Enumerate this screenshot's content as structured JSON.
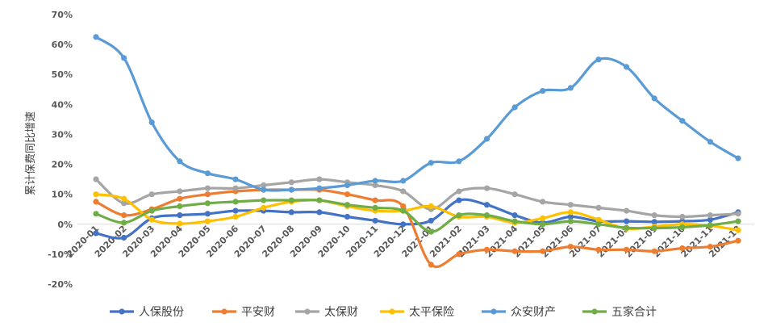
{
  "chart_data": {
    "type": "line",
    "title": "",
    "xlabel": "",
    "ylabel": "累计保费同比增速",
    "ylim": [
      -20,
      70
    ],
    "yticks": [
      -20,
      -10,
      0,
      10,
      20,
      30,
      40,
      50,
      60,
      70
    ],
    "ytick_labels": [
      "-20%",
      "-10%",
      "0%",
      "10%",
      "20%",
      "30%",
      "40%",
      "50%",
      "60%",
      "70%"
    ],
    "grid": false,
    "legend_position": "bottom",
    "categories": [
      "2020-01",
      "2020-02",
      "2020-03",
      "2020-04",
      "2020-05",
      "2020-06",
      "2020-07",
      "2020-08",
      "2020-09",
      "2020-10",
      "2020-11",
      "2020-12",
      "2021-01",
      "2021-02",
      "2021-03",
      "2021-04",
      "2021-05",
      "2021-06",
      "2021-07",
      "2021-08",
      "2021-09",
      "2021-10",
      "2021-11",
      "2021-12"
    ],
    "series": [
      {
        "name": "人保股份",
        "color": "#4472C4",
        "values": [
          -3,
          -4.5,
          2,
          3,
          3.5,
          4.5,
          4.5,
          4,
          4,
          2.5,
          1.2,
          0,
          1.2,
          8,
          6.5,
          3,
          0.5,
          2.5,
          1,
          1,
          0.8,
          1,
          1.5,
          4
        ]
      },
      {
        "name": "平安财",
        "color": "#ED7D31",
        "values": [
          7.5,
          3,
          5,
          8.5,
          10,
          11,
          11.5,
          11.5,
          11.5,
          10,
          8,
          6,
          -13.5,
          -10,
          -8.5,
          -9,
          -9,
          -7.5,
          -8.5,
          -8.5,
          -9,
          -8,
          -7.5,
          -5.5
        ]
      },
      {
        "name": "太保财",
        "color": "#A5A5A5",
        "values": [
          15,
          7,
          10,
          11,
          12,
          12,
          13,
          14,
          15,
          14,
          13,
          11,
          5,
          11,
          12,
          10,
          7.5,
          6.5,
          5.5,
          4.5,
          3,
          2.5,
          3,
          3.5
        ]
      },
      {
        "name": "太平保险",
        "color": "#FFC000",
        "values": [
          10,
          8.5,
          1.5,
          0.2,
          1,
          2.5,
          5.5,
          7.5,
          8,
          6,
          4.5,
          4.5,
          6,
          2.5,
          2.5,
          0.5,
          2,
          4,
          1.5,
          -1.5,
          -0.8,
          0,
          -0.5,
          -2
        ]
      },
      {
        "name": "众安财产",
        "color": "#5B9BD5",
        "values": [
          62.5,
          55.5,
          34,
          21,
          17,
          15,
          11.5,
          11.5,
          12,
          13,
          14.5,
          14.5,
          20.5,
          21,
          28.5,
          39,
          44.5,
          45.5,
          55,
          52.5,
          42,
          34.5,
          27.5,
          22
        ]
      },
      {
        "name": "五家合计",
        "color": "#70AD47",
        "values": [
          3.5,
          0.5,
          4.5,
          6,
          7,
          7.5,
          8,
          8,
          8,
          6.5,
          5.5,
          4.5,
          -2.5,
          3,
          3,
          1,
          0,
          1,
          0,
          -1.2,
          -1.3,
          -1,
          -0.3,
          1
        ]
      }
    ]
  }
}
